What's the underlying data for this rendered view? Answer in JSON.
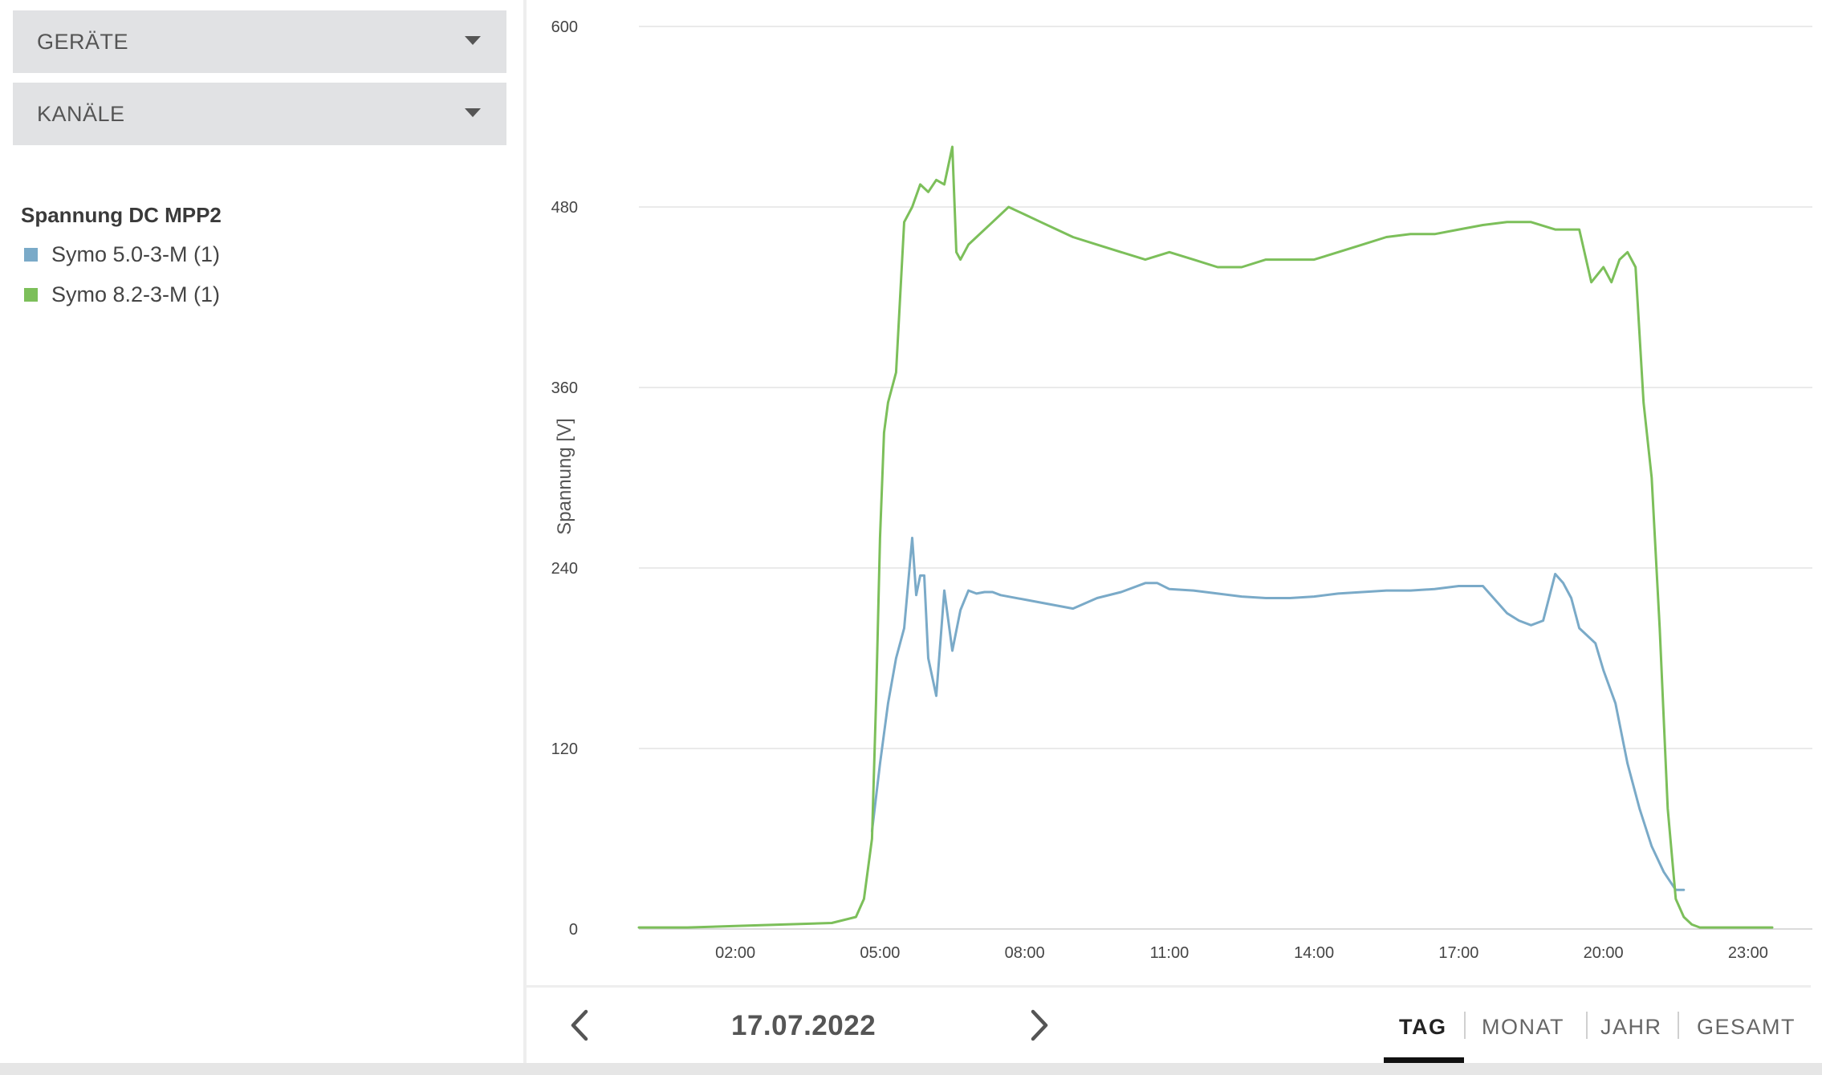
{
  "filters": {
    "devices_label": "GERÄTE",
    "channels_label": "KANÄLE"
  },
  "legend": {
    "title": "Spannung DC MPP2",
    "items": [
      {
        "label": "Symo 5.0-3-M (1)",
        "color": "#7aaac8"
      },
      {
        "label": "Symo 8.2-3-M (1)",
        "color": "#7cbf5a"
      }
    ]
  },
  "navigation": {
    "date": "17.07.2022",
    "prev_icon": "chevron-left-icon",
    "next_icon": "chevron-right-icon"
  },
  "range_tabs": [
    {
      "label": "TAG",
      "active": true
    },
    {
      "label": "MONAT",
      "active": false
    },
    {
      "label": "JAHR",
      "active": false
    },
    {
      "label": "GESAMT",
      "active": false
    }
  ],
  "chart_data": {
    "type": "line",
    "ylabel": "Spannung [V]",
    "ylim": [
      0,
      600
    ],
    "yticks": [
      0,
      120,
      240,
      360,
      480,
      600
    ],
    "xlim": [
      "00:00",
      "24:00"
    ],
    "xticks": [
      "02:00",
      "05:00",
      "08:00",
      "11:00",
      "14:00",
      "17:00",
      "20:00",
      "23:00"
    ],
    "grid": true,
    "series": [
      {
        "name": "Symo 5.0-3-M (1)",
        "color": "#7aaac8",
        "x": [
          "04:50",
          "05:00",
          "05:10",
          "05:20",
          "05:30",
          "05:40",
          "05:45",
          "05:50",
          "05:55",
          "06:00",
          "06:10",
          "06:20",
          "06:30",
          "06:40",
          "06:50",
          "07:00",
          "07:10",
          "07:20",
          "07:30",
          "08:00",
          "08:30",
          "09:00",
          "09:30",
          "10:00",
          "10:30",
          "10:45",
          "11:00",
          "11:30",
          "12:00",
          "12:30",
          "13:00",
          "13:30",
          "14:00",
          "14:30",
          "15:00",
          "15:30",
          "16:00",
          "16:30",
          "17:00",
          "17:30",
          "18:00",
          "18:15",
          "18:30",
          "18:45",
          "19:00",
          "19:10",
          "19:20",
          "19:30",
          "19:40",
          "19:50",
          "20:00",
          "20:15",
          "20:30",
          "20:45",
          "21:00",
          "21:15",
          "21:30",
          "21:40"
        ],
        "y": [
          65,
          110,
          150,
          180,
          200,
          260,
          222,
          235,
          235,
          180,
          155,
          225,
          185,
          212,
          225,
          223,
          224,
          224,
          222,
          219,
          216,
          213,
          220,
          224,
          230,
          230,
          226,
          225,
          223,
          221,
          220,
          220,
          221,
          223,
          224,
          225,
          225,
          226,
          228,
          228,
          210,
          205,
          202,
          205,
          236,
          230,
          220,
          200,
          195,
          190,
          172,
          150,
          110,
          80,
          55,
          38,
          26,
          26
        ]
      },
      {
        "name": "Symo 8.2-3-M (1)",
        "color": "#7cbf5a",
        "x": [
          "00:00",
          "01:00",
          "02:00",
          "03:00",
          "04:00",
          "04:30",
          "04:40",
          "04:50",
          "04:55",
          "05:00",
          "05:05",
          "05:10",
          "05:20",
          "05:30",
          "05:40",
          "05:50",
          "06:00",
          "06:10",
          "06:20",
          "06:30",
          "06:35",
          "06:40",
          "06:50",
          "07:00",
          "07:20",
          "07:40",
          "08:00",
          "08:20",
          "08:40",
          "09:00",
          "09:30",
          "10:00",
          "10:30",
          "11:00",
          "11:30",
          "12:00",
          "12:30",
          "13:00",
          "13:30",
          "14:00",
          "14:30",
          "15:00",
          "15:30",
          "16:00",
          "16:30",
          "17:00",
          "17:30",
          "18:00",
          "18:30",
          "19:00",
          "19:15",
          "19:30",
          "19:45",
          "20:00",
          "20:10",
          "20:20",
          "20:30",
          "20:40",
          "20:50",
          "21:00",
          "21:10",
          "21:20",
          "21:30",
          "21:40",
          "21:50",
          "22:00",
          "22:30",
          "23:00",
          "23:30"
        ],
        "y": [
          1,
          1,
          2,
          3,
          4,
          8,
          20,
          60,
          150,
          260,
          330,
          350,
          370,
          470,
          480,
          495,
          490,
          498,
          495,
          520,
          450,
          445,
          455,
          460,
          470,
          480,
          475,
          470,
          465,
          460,
          455,
          450,
          445,
          450,
          445,
          440,
          440,
          445,
          445,
          445,
          450,
          455,
          460,
          462,
          462,
          465,
          468,
          470,
          470,
          465,
          465,
          465,
          430,
          440,
          430,
          445,
          450,
          440,
          350,
          300,
          200,
          80,
          20,
          8,
          3,
          1,
          1,
          1,
          1
        ]
      }
    ]
  }
}
